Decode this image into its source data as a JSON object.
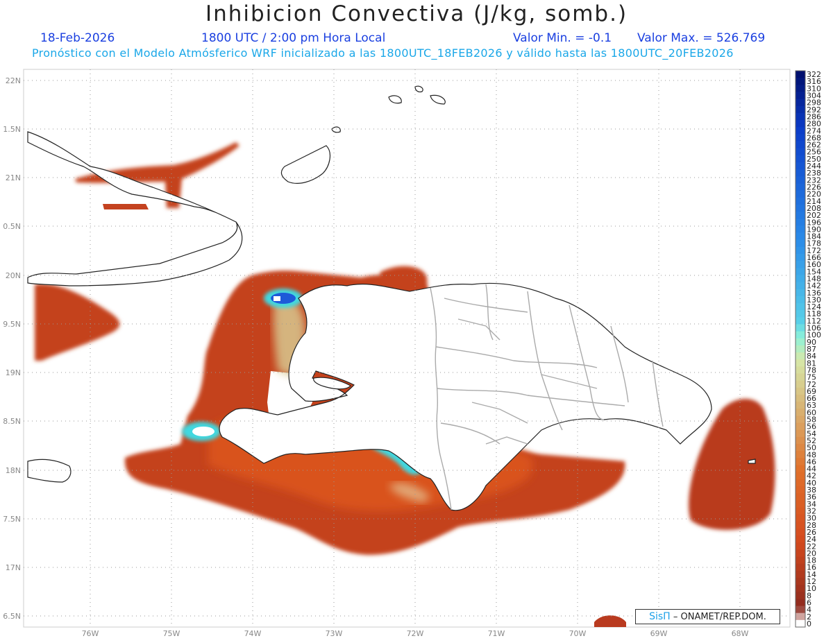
{
  "title": "Inhibicion Convectiva (J/kg, somb.)",
  "header": {
    "date": "18-Feb-2026",
    "time": "1800 UTC / 2:00 pm Hora Local",
    "min_label": "Valor Min. = -0.1",
    "max_label": "Valor Max. = 526.769",
    "forecast_line": "Pronóstico con el Modelo Atmósferico WRF inicializado a las 1800UTC_18FEB2026 y válido hasta las  1800UTC_20FEB2026"
  },
  "map": {
    "lat_labels": [
      "22N",
      "1.5N",
      "21N",
      "0.5N",
      "20N",
      "9.5N",
      "19N",
      "8.5N",
      "18N",
      "7.5N",
      "17N",
      "6.5N"
    ],
    "lon_labels": [
      "76W",
      "75W",
      "74W",
      "73W",
      "72W",
      "71W",
      "70W",
      "69W",
      "68W"
    ],
    "lat_range": [
      16.5,
      22.0
    ],
    "lon_range": [
      -77.0,
      -67.5
    ],
    "grid": true,
    "field_colors": {
      "low": "#8c2a1e",
      "mid": "#e0501a",
      "pale": "#d8c890",
      "cyan": "#40d8e0",
      "blue": "#1e5ad8",
      "navy": "#0a1a7a",
      "border_land": "#222222",
      "border_province": "#aaaaaa"
    }
  },
  "colorbar": {
    "labels": [
      "322",
      "316",
      "310",
      "304",
      "298",
      "292",
      "286",
      "280",
      "274",
      "268",
      "262",
      "256",
      "250",
      "244",
      "238",
      "232",
      "226",
      "220",
      "214",
      "208",
      "202",
      "196",
      "190",
      "184",
      "178",
      "172",
      "166",
      "160",
      "154",
      "148",
      "142",
      "136",
      "130",
      "124",
      "118",
      "112",
      "106",
      "100",
      "90",
      "87",
      "84",
      "81",
      "78",
      "75",
      "72",
      "69",
      "66",
      "63",
      "60",
      "58",
      "56",
      "54",
      "52",
      "50",
      "48",
      "46",
      "44",
      "42",
      "40",
      "38",
      "36",
      "34",
      "32",
      "30",
      "28",
      "26",
      "24",
      "22",
      "20",
      "18",
      "16",
      "14",
      "12",
      "10",
      "8",
      "6",
      "4",
      "2",
      "0"
    ]
  },
  "credit": {
    "brand": "SisΠ",
    "org": " – ONAMET/REP.DOM."
  }
}
